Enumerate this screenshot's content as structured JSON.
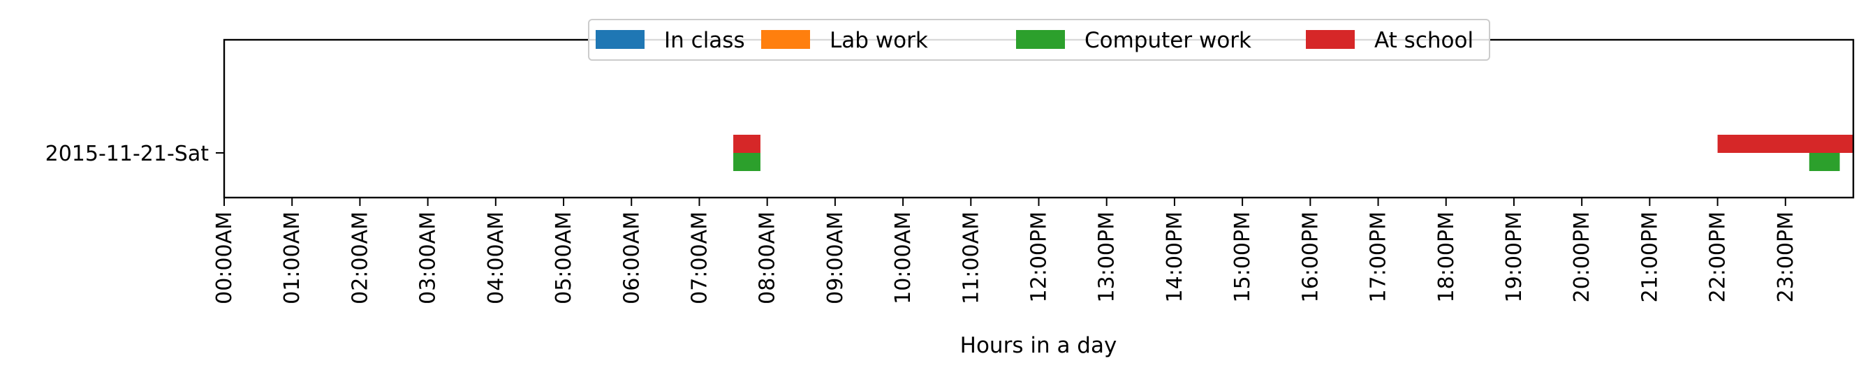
{
  "chart_data": {
    "type": "bar",
    "orientation": "horizontal-timeline",
    "xlabel": "Hours in a day",
    "ylabel": "",
    "xlim": [
      0,
      24
    ],
    "x_ticks": [
      "00:00AM",
      "01:00AM",
      "02:00AM",
      "03:00AM",
      "04:00AM",
      "05:00AM",
      "06:00AM",
      "07:00AM",
      "08:00AM",
      "09:00AM",
      "10:00AM",
      "11:00AM",
      "12:00PM",
      "13:00PM",
      "14:00PM",
      "15:00PM",
      "16:00PM",
      "17:00PM",
      "18:00PM",
      "19:00PM",
      "20:00PM",
      "21:00PM",
      "22:00PM",
      "23:00PM"
    ],
    "categories": [
      "2015-11-21-Sat"
    ],
    "legend_position": "top-center",
    "grid": false,
    "series": [
      {
        "name": "In class",
        "color": "#1f77b4",
        "intervals": []
      },
      {
        "name": "Lab work",
        "color": "#ff7f0e",
        "intervals": []
      },
      {
        "name": "Computer work",
        "color": "#2ca02c",
        "intervals": [
          [
            7.5,
            7.9
          ],
          [
            23.35,
            23.8
          ]
        ]
      },
      {
        "name": "At school",
        "color": "#d62728",
        "intervals": [
          [
            7.5,
            7.9
          ],
          [
            22.0,
            24.0
          ]
        ]
      }
    ]
  }
}
